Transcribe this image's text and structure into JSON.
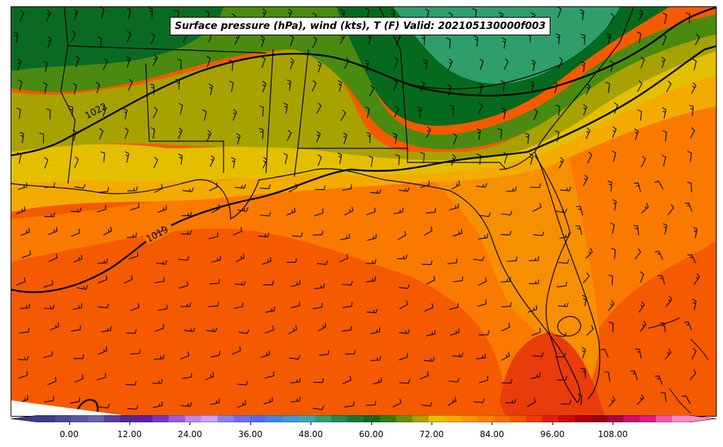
{
  "title": "Surface pressure (hPa), wind (kts), T (F) Valid: 202105130000f003",
  "isobar_labels": [
    "1022",
    "1019"
  ],
  "colorbar": {
    "tick_labels": [
      "0.00",
      "12.00",
      "24.00",
      "36.00",
      "48.00",
      "60.00",
      "72.00",
      "84.00",
      "96.00",
      "108.00"
    ],
    "tick_values": [
      0,
      12,
      24,
      36,
      48,
      60,
      72,
      84,
      96,
      108
    ],
    "range": [
      -6,
      123
    ],
    "step": 3,
    "colors": [
      "#3b3b8f",
      "#4a4a9a",
      "#5a55a5",
      "#6a60ae",
      "#5b3fa0",
      "#4f2a96",
      "#5a1fa6",
      "#7a35c8",
      "#9a5ce0",
      "#b98af0",
      "#c8a4ff",
      "#8a80ff",
      "#6a70ff",
      "#4f6cf5",
      "#3d86e8",
      "#3a9ad8",
      "#3aa8b8",
      "#2f9e7a",
      "#1f8a55",
      "#127a3a",
      "#0a6a24",
      "#2f7f10",
      "#6a8e0a",
      "#a7a200",
      "#e3bf00",
      "#f3ab00",
      "#f79500",
      "#f98200",
      "#fa6e00",
      "#f45800",
      "#e93d0a",
      "#dc2010",
      "#c80d10",
      "#b00010",
      "#9a0018",
      "#a0084a",
      "#c8106e",
      "#e01c86",
      "#f055a8",
      "#ff88cc"
    ]
  },
  "legend_colors": {
    "gulf_warm": "#f55a00",
    "coastal": "#fa7a00",
    "land_warm": "#f79500",
    "transition": "#f3ab00",
    "mid": "#e3bf00",
    "olive": "#a7a200",
    "cool_green": "#3a8a10",
    "dark_green": "#066a1e",
    "teal_green": "#2f9e6a",
    "hot_keys": "#e83c0a"
  }
}
